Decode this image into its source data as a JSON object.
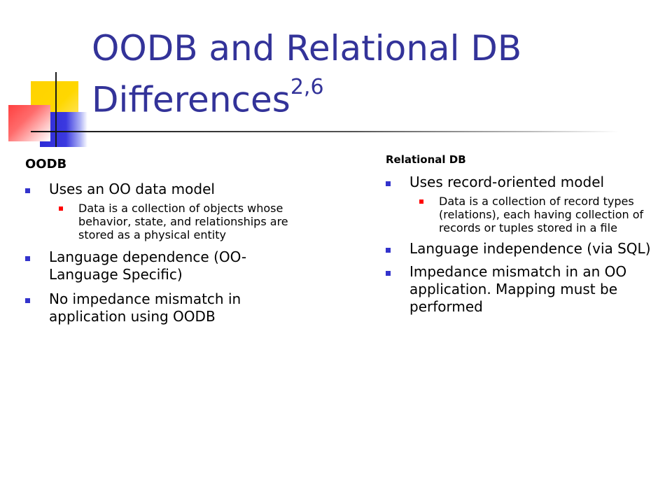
{
  "slide": {
    "title_main": "OODB and Relational DB Differences",
    "title_sup": "2,6"
  },
  "oodb": {
    "heading": "OODB",
    "item1": "Uses an OO data model",
    "item1_sub": "Data is a collection of objects whose behavior, state, and relationships are stored as a physical entity",
    "item2": "Language dependence (OO-Language Specific)",
    "item3": "No impedance mismatch in application using OODB"
  },
  "relational": {
    "heading": "Relational DB",
    "item1": "Uses record-oriented model",
    "item1_sub": "Data is a collection of record types (relations), each having collection of records or tuples stored in a file",
    "item2": "Language independence (via SQL)",
    "item3": "Impedance mismatch in an OO application.  Mapping must be performed"
  },
  "colors": {
    "title": "#333399",
    "bullet_level1": "#3333cc",
    "bullet_level2": "#ff0000",
    "decor_yellow": "#ffd200",
    "decor_blue": "#2d2bd6",
    "decor_red": "#ff4040"
  }
}
